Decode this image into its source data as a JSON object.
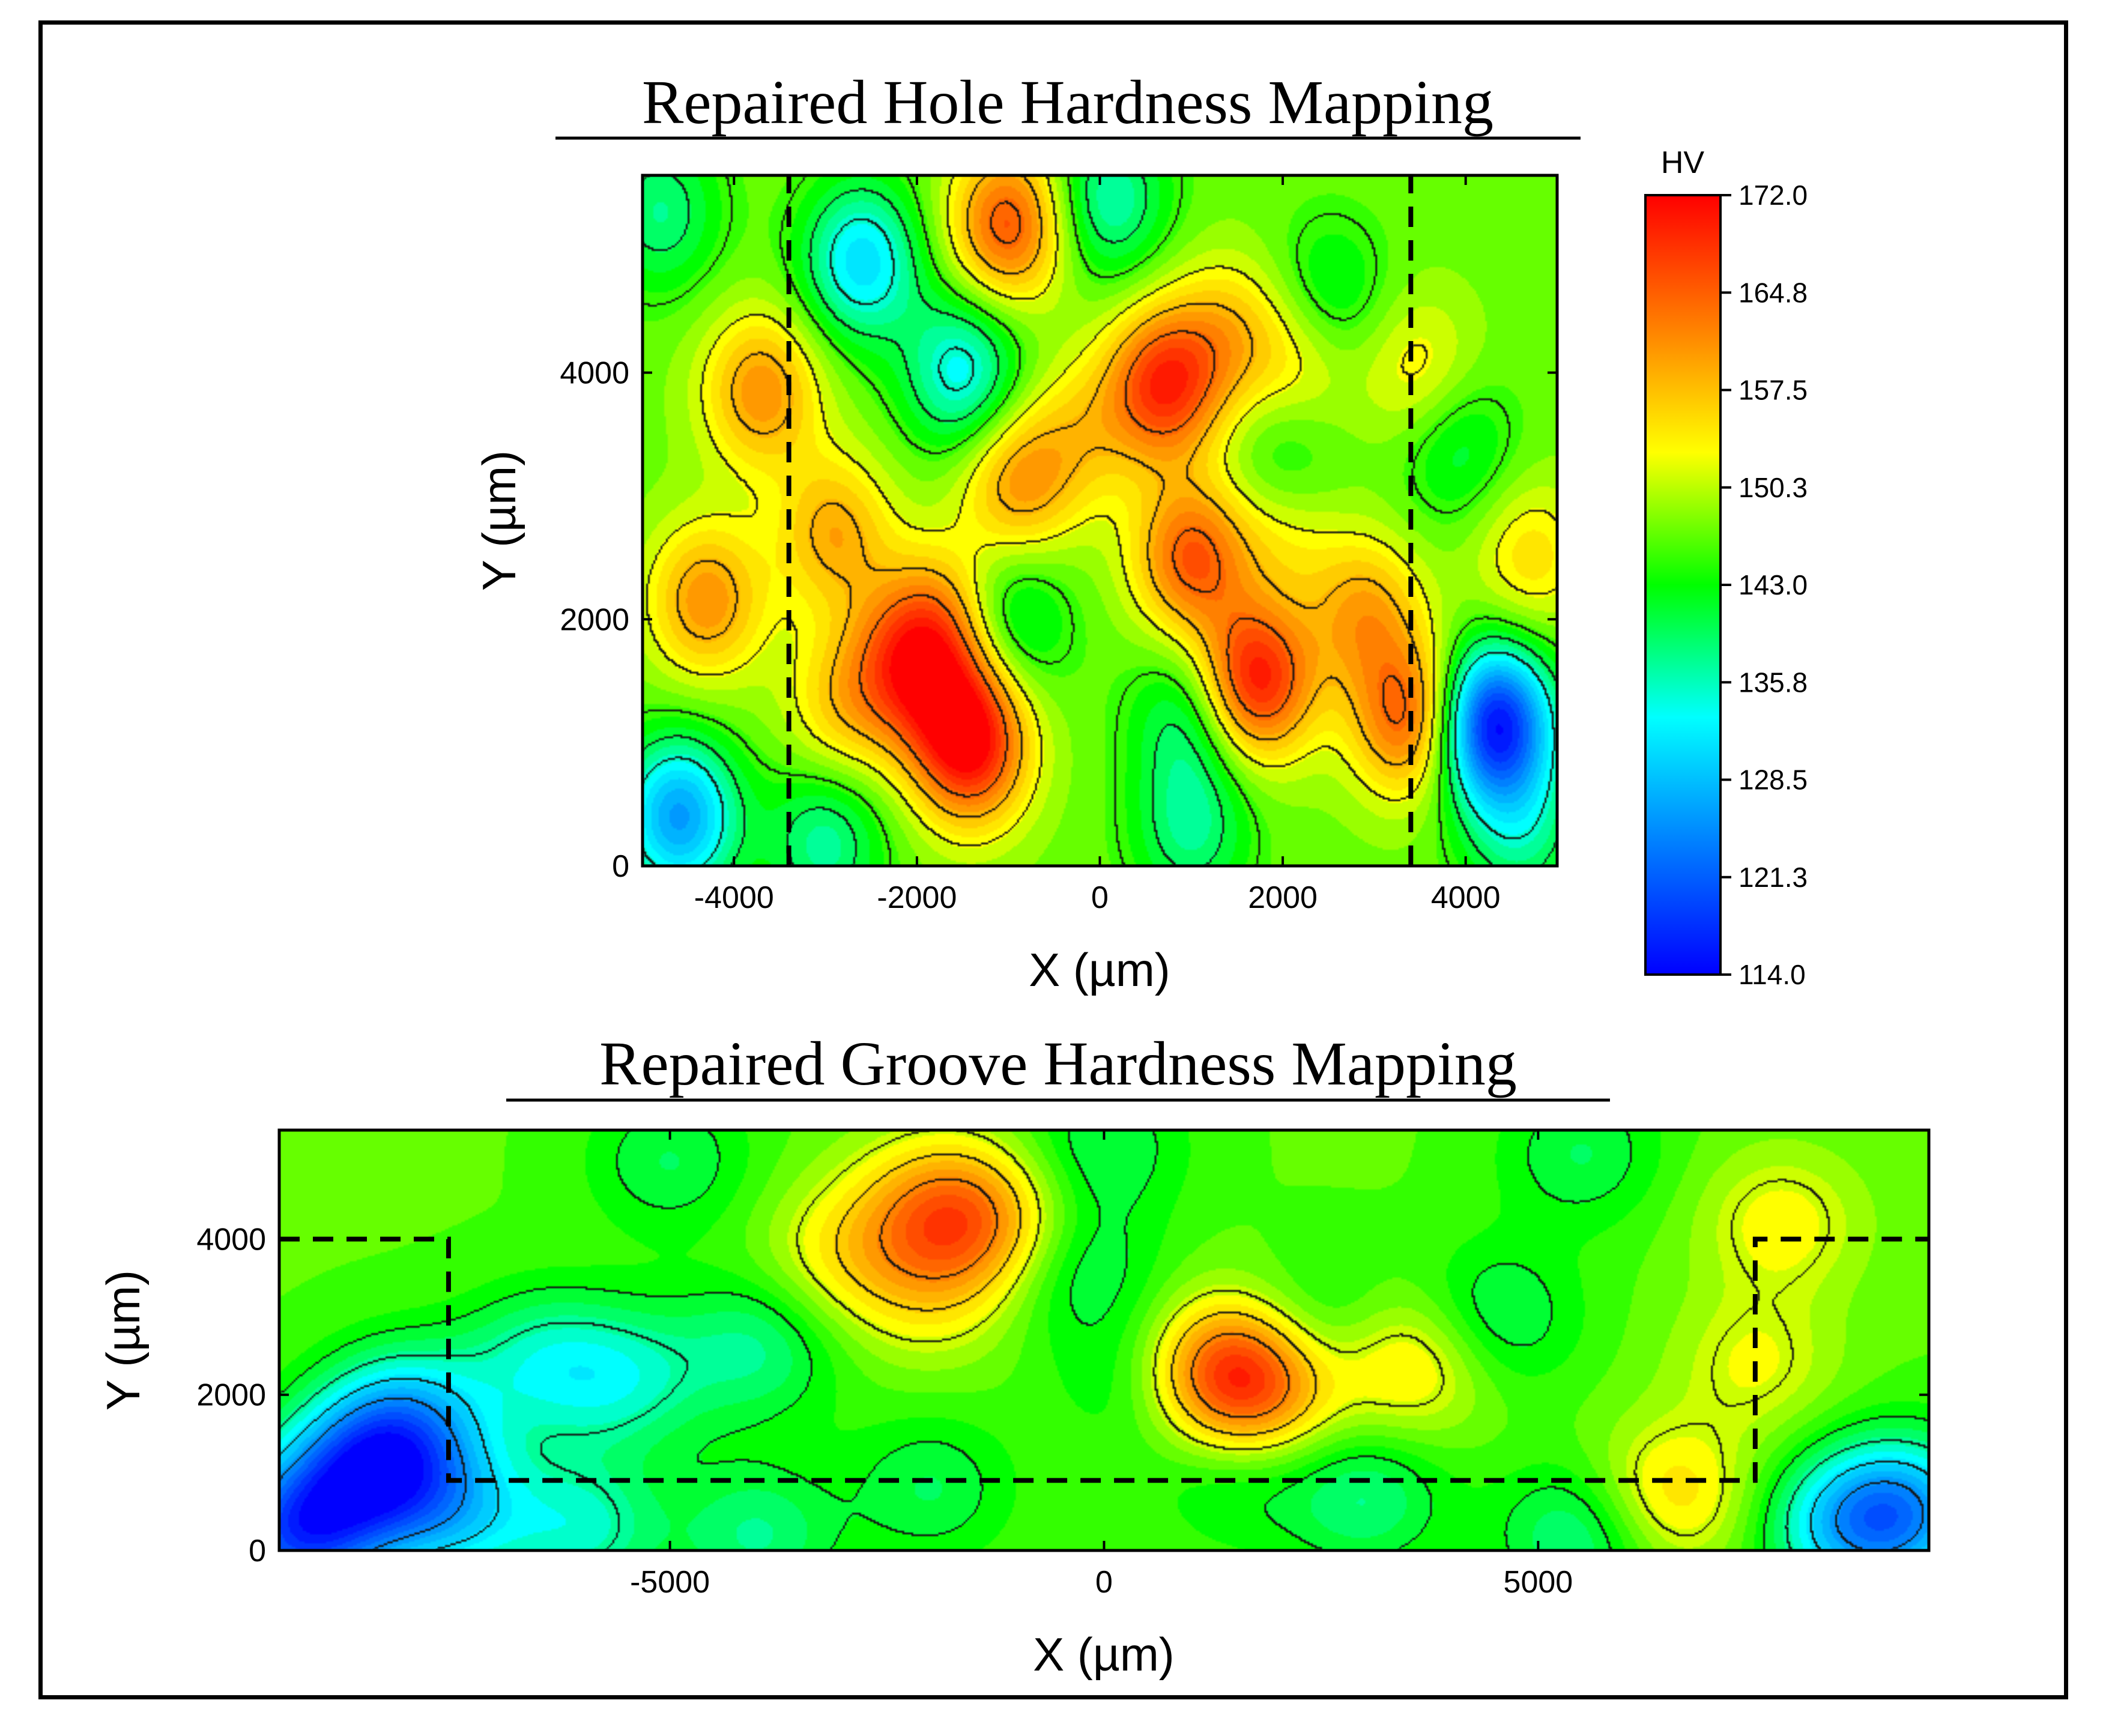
{
  "colors": {
    "colormap": [
      "#0000ff",
      "#0080ff",
      "#00ffff",
      "#00ff00",
      "#ffff00",
      "#ff8000",
      "#ff0000"
    ],
    "background": "#00e000",
    "contour_line": "#000000",
    "frame": "#000000"
  },
  "chart_data": [
    {
      "type": "heatmap",
      "title": "Repaired Hole Hardness Mapping",
      "xlabel": "X (µm)",
      "ylabel": "Y (µm)",
      "xlim": [
        -5000,
        5000
      ],
      "ylim": [
        0,
        5600
      ],
      "x_ticks": [
        -4000,
        -2000,
        0,
        2000,
        4000
      ],
      "y_ticks": [
        0,
        2000,
        4000
      ],
      "x_tick_labels": [
        "-4000",
        "-2000",
        "0",
        "2000",
        "4000"
      ],
      "y_tick_labels": [
        "0",
        "2000",
        "4000"
      ],
      "value_range": [
        114.0,
        172.0
      ],
      "base_value": 147,
      "contour_levels": [
        135,
        140,
        145,
        152,
        158,
        164
      ],
      "features": [
        {
          "x": 700,
          "y": 3900,
          "value": 168
        },
        {
          "x": 1400,
          "y": 4300,
          "value": 156
        },
        {
          "x": 2200,
          "y": 4100,
          "value": 154
        },
        {
          "x": -900,
          "y": 3100,
          "value": 160
        },
        {
          "x": -200,
          "y": 3500,
          "value": 154
        },
        {
          "x": -2100,
          "y": 1650,
          "value": 163
        },
        {
          "x": -1500,
          "y": 1200,
          "value": 160
        },
        {
          "x": -1400,
          "y": 900,
          "value": 163
        },
        {
          "x": -2800,
          "y": 1300,
          "value": 156
        },
        {
          "x": -1700,
          "y": 2000,
          "value": 158
        },
        {
          "x": -2900,
          "y": 2700,
          "value": 159
        },
        {
          "x": -4300,
          "y": 2150,
          "value": 161
        },
        {
          "x": -3700,
          "y": 3850,
          "value": 161
        },
        {
          "x": -1000,
          "y": 5200,
          "value": 166
        },
        {
          "x": 1700,
          "y": 1500,
          "value": 171
        },
        {
          "x": 1000,
          "y": 2500,
          "value": 165
        },
        {
          "x": 2000,
          "y": 2800,
          "value": 155
        },
        {
          "x": 2900,
          "y": 2050,
          "value": 159
        },
        {
          "x": 3400,
          "y": 1200,
          "value": 166
        },
        {
          "x": 3500,
          "y": 4000,
          "value": 154
        },
        {
          "x": 4700,
          "y": 2500,
          "value": 155
        },
        {
          "x": 4300,
          "y": 1150,
          "value": 114
        },
        {
          "x": -2600,
          "y": 4900,
          "value": 131
        },
        {
          "x": -1500,
          "y": 4000,
          "value": 133
        },
        {
          "x": 100,
          "y": 5400,
          "value": 136
        },
        {
          "x": -4600,
          "y": 400,
          "value": 126
        },
        {
          "x": -4800,
          "y": 5300,
          "value": 138
        },
        {
          "x": -1000,
          "y": 2000,
          "value": 138
        },
        {
          "x": 1000,
          "y": 1200,
          "value": 138
        },
        {
          "x": 2000,
          "y": 3200,
          "value": 139
        },
        {
          "x": 3900,
          "y": 3400,
          "value": 140
        },
        {
          "x": 4600,
          "y": 300,
          "value": 138
        },
        {
          "x": 1000,
          "y": 300,
          "value": 138
        },
        {
          "x": 2500,
          "y": 4600,
          "value": 140
        },
        {
          "x": -3000,
          "y": 200,
          "value": 137
        }
      ],
      "dashed_lines": [
        {
          "x": [
            -3400,
            -3400
          ],
          "y": [
            0,
            5600
          ]
        },
        {
          "x": [
            3400,
            3400
          ],
          "y": [
            0,
            5600
          ]
        }
      ]
    },
    {
      "type": "heatmap",
      "title": "Repaired Groove Hardness Mapping",
      "xlabel": "X (µm)",
      "ylabel": "Y (µm)",
      "xlim": [
        -9500,
        9500
      ],
      "ylim": [
        0,
        5400
      ],
      "x_ticks": [
        -5000,
        0,
        5000
      ],
      "y_ticks": [
        0,
        2000,
        4000
      ],
      "x_tick_labels": [
        "-5000",
        "0",
        "5000"
      ],
      "y_tick_labels": [
        "0",
        "2000",
        "4000"
      ],
      "value_range": [
        114.0,
        172.0
      ],
      "base_value": 146,
      "contour_levels": [
        125,
        131,
        137,
        142,
        151,
        156,
        162
      ],
      "features": [
        {
          "x": -8500,
          "y": 1000,
          "value": 124
        },
        {
          "x": -8000,
          "y": 1700,
          "value": 132
        },
        {
          "x": -7500,
          "y": 500,
          "value": 133
        },
        {
          "x": -9300,
          "y": 200,
          "value": 122
        },
        {
          "x": -6500,
          "y": 2400,
          "value": 137
        },
        {
          "x": -5500,
          "y": 2200,
          "value": 137
        },
        {
          "x": -4000,
          "y": 2600,
          "value": 138
        },
        {
          "x": -6000,
          "y": 300,
          "value": 136
        },
        {
          "x": -4000,
          "y": 200,
          "value": 138
        },
        {
          "x": 1300,
          "y": 2300,
          "value": 162
        },
        {
          "x": 1800,
          "y": 2100,
          "value": 160
        },
        {
          "x": -2000,
          "y": 4400,
          "value": 156
        },
        {
          "x": -1400,
          "y": 4200,
          "value": 158
        },
        {
          "x": -3000,
          "y": 3800,
          "value": 153
        },
        {
          "x": -2000,
          "y": 3300,
          "value": 152
        },
        {
          "x": 3500,
          "y": 2400,
          "value": 156
        },
        {
          "x": 6500,
          "y": 700,
          "value": 156
        },
        {
          "x": 7500,
          "y": 2400,
          "value": 152
        },
        {
          "x": 7800,
          "y": 4200,
          "value": 153
        },
        {
          "x": -300,
          "y": 3600,
          "value": 140
        },
        {
          "x": 500,
          "y": 2200,
          "value": 140
        },
        {
          "x": 2500,
          "y": 2800,
          "value": 140
        },
        {
          "x": 4500,
          "y": 3000,
          "value": 139
        },
        {
          "x": 3000,
          "y": 700,
          "value": 138
        },
        {
          "x": 5500,
          "y": 200,
          "value": 137
        },
        {
          "x": 8500,
          "y": 300,
          "value": 134
        },
        {
          "x": 9200,
          "y": 500,
          "value": 128
        },
        {
          "x": 0,
          "y": 5200,
          "value": 140
        },
        {
          "x": -5000,
          "y": 5000,
          "value": 140
        },
        {
          "x": 5500,
          "y": 5100,
          "value": 140
        },
        {
          "x": -2000,
          "y": 800,
          "value": 140
        },
        {
          "x": 1500,
          "y": 1000,
          "value": 141
        }
      ],
      "dashed_lines": [
        {
          "x": [
            -9500,
            -7550,
            -7550,
            7500,
            7500,
            9500
          ],
          "y": [
            4000,
            4000,
            900,
            900,
            4000,
            4000
          ]
        }
      ]
    }
  ],
  "colorbar": {
    "label": "HV",
    "min": 114.0,
    "max": 172.0,
    "ticks": [
      "172.0",
      "164.8",
      "157.5",
      "150.3",
      "143.0",
      "135.8",
      "128.5",
      "121.3",
      "114.0"
    ]
  }
}
